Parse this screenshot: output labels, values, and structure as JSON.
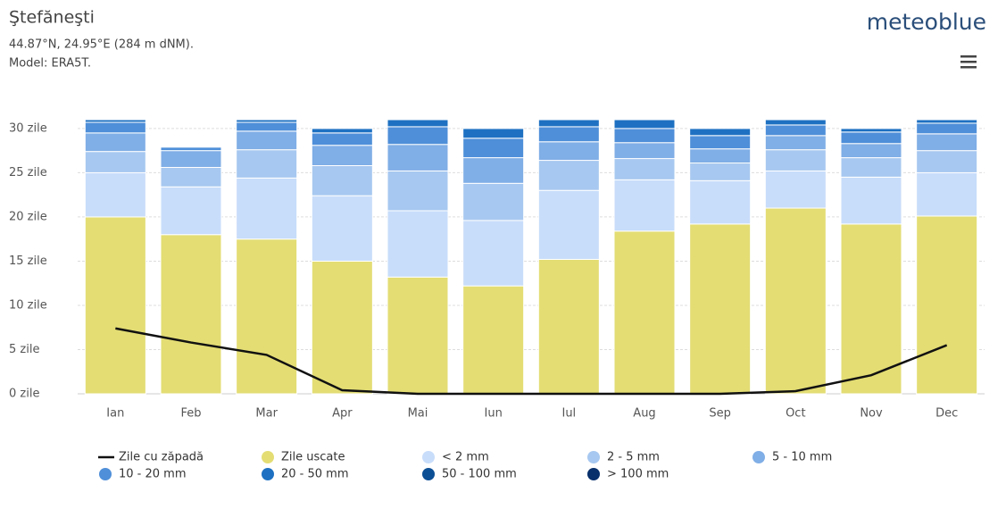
{
  "chart_data": {
    "type": "bar",
    "title": "Ştefăneşti",
    "subtitle": "44.87°N, 24.95°E (284 m dNM).",
    "model": "Model: ERA5T.",
    "brand": "meteoblue",
    "categories": [
      "Ian",
      "Feb",
      "Mar",
      "Apr",
      "Mai",
      "Iun",
      "Iul",
      "Aug",
      "Sep",
      "Oct",
      "Nov",
      "Dec"
    ],
    "ylim": [
      0,
      31
    ],
    "yticks": [
      {
        "value": 0,
        "label": "0 zile"
      },
      {
        "value": 5,
        "label": "5 zile"
      },
      {
        "value": 10,
        "label": "10 zile"
      },
      {
        "value": 15,
        "label": "15 zile"
      },
      {
        "value": 20,
        "label": "20 zile"
      },
      {
        "value": 25,
        "label": "25 zile"
      },
      {
        "value": 30,
        "label": "30 zile"
      }
    ],
    "grid": true,
    "series": [
      {
        "name": "Zile cu zăpadă",
        "type": "line",
        "color": "#111111",
        "values": [
          7.4,
          5.8,
          4.4,
          0.4,
          0,
          0,
          0,
          0,
          0,
          0.3,
          2.1,
          5.5
        ]
      },
      {
        "name": "Zile uscate",
        "color": "#e3dd74",
        "values": [
          20,
          18,
          17.5,
          15,
          13.2,
          12.2,
          15.2,
          18.4,
          19.2,
          21,
          19.2,
          20.1
        ]
      },
      {
        "name": "< 2 mm",
        "color": "#c8ddfa",
        "values": [
          5,
          5.4,
          6.9,
          7.4,
          7.5,
          7.4,
          7.8,
          5.8,
          4.9,
          4.2,
          5.3,
          4.9
        ]
      },
      {
        "name": "2 - 5 mm",
        "color": "#a7c8f0",
        "values": [
          2.4,
          2.2,
          3.2,
          3.4,
          4.5,
          4.2,
          3.4,
          2.4,
          2,
          2.4,
          2.2,
          2.5
        ]
      },
      {
        "name": "5 - 10 mm",
        "color": "#80aee6",
        "values": [
          2.1,
          1.9,
          2.1,
          2.3,
          3,
          2.9,
          2.1,
          1.8,
          1.6,
          1.6,
          1.6,
          1.9
        ]
      },
      {
        "name": "10 - 20 mm",
        "color": "#4f8fd9",
        "values": [
          1.2,
          0.4,
          1,
          1.4,
          2,
          2.2,
          1.7,
          1.6,
          1.5,
          1.2,
          1.3,
          1.2
        ]
      },
      {
        "name": "20 - 50 mm",
        "color": "#1e71c2",
        "values": [
          0.3,
          0.1,
          0.3,
          0.5,
          0.8,
          1.1,
          0.8,
          1,
          0.8,
          0.6,
          0.4,
          0.4
        ]
      },
      {
        "name": "50 - 100 mm",
        "color": "#0d4f95",
        "values": [
          0,
          0,
          0,
          0,
          0,
          0,
          0,
          0,
          0,
          0,
          0,
          0
        ]
      },
      {
        "name": "> 100 mm",
        "color": "#08306b",
        "values": [
          0,
          0,
          0,
          0,
          0,
          0,
          0,
          0,
          0,
          0,
          0,
          0
        ]
      }
    ]
  }
}
